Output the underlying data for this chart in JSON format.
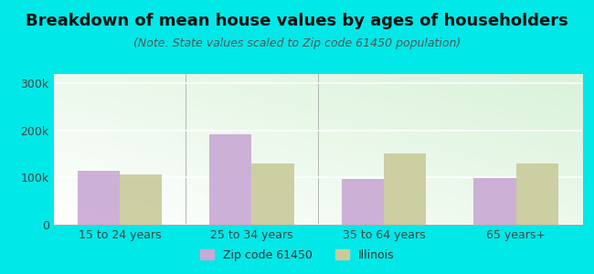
{
  "title": "Breakdown of mean house values by ages of householders",
  "subtitle": "(Note: State values scaled to Zip code 61450 population)",
  "categories": [
    "15 to 24 years",
    "25 to 34 years",
    "35 to 64 years",
    "65 years+"
  ],
  "zip_values": [
    115000,
    192000,
    97000,
    99000
  ],
  "state_values": [
    106000,
    130000,
    151000,
    130000
  ],
  "zip_color": "#c9a8d4",
  "state_color": "#c8cb9a",
  "background_outer": "#00e8e8",
  "ylim": [
    0,
    320000
  ],
  "yticks": [
    0,
    100000,
    200000,
    300000
  ],
  "ytick_labels": [
    "0",
    "100k",
    "200k",
    "300k"
  ],
  "legend_zip_label": "Zip code 61450",
  "legend_state_label": "Illinois",
  "bar_width": 0.32,
  "title_fontsize": 13,
  "subtitle_fontsize": 9,
  "tick_fontsize": 9,
  "legend_fontsize": 9
}
